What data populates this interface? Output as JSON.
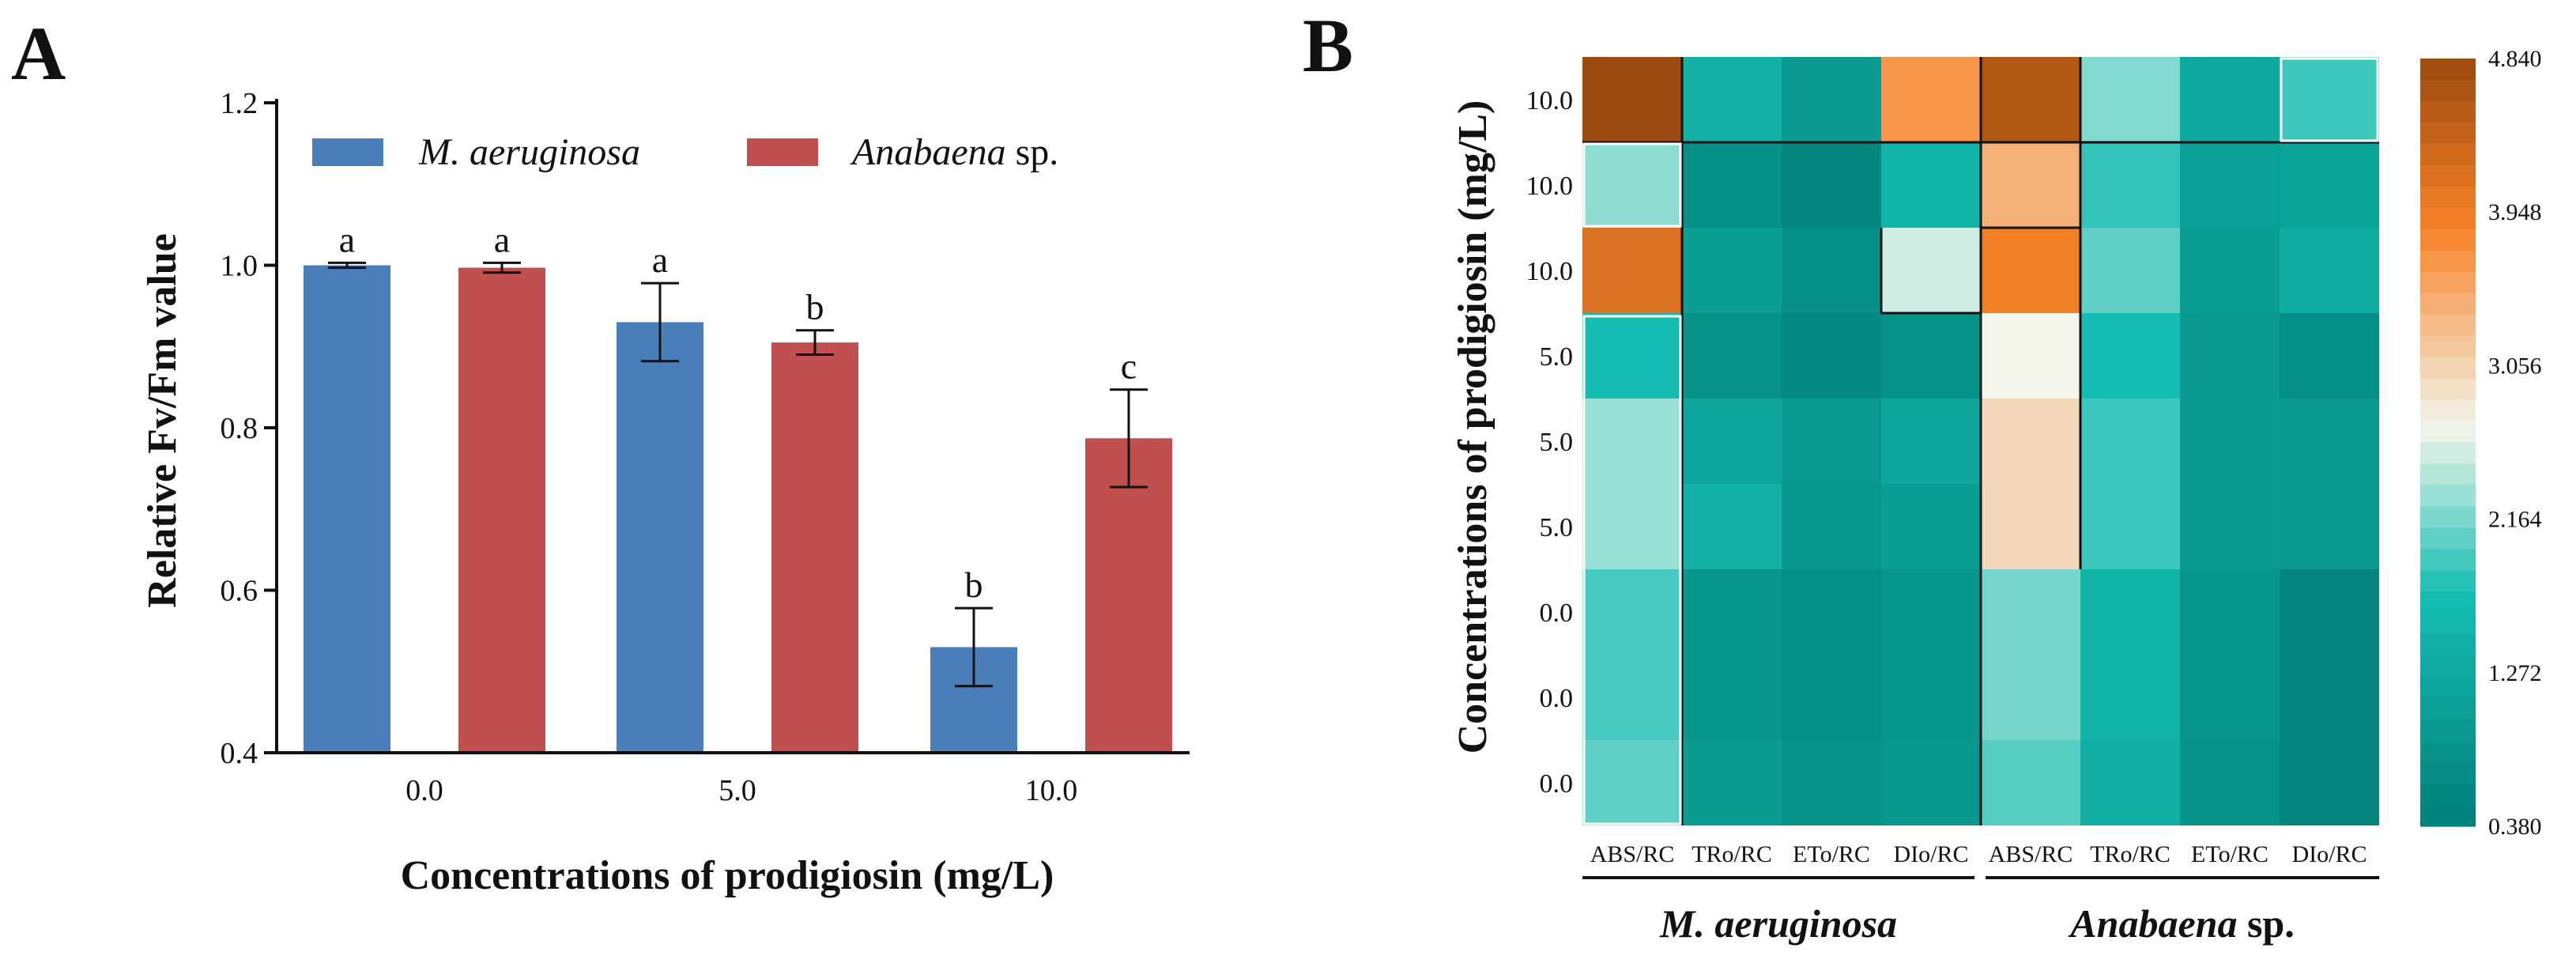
{
  "panel_a": {
    "letter": "A"
  },
  "panel_b": {
    "letter": "B"
  },
  "colors": {
    "m_aeruginosa": "#4a7ebb",
    "anabaena": "#c0504d",
    "heat_low": "#007f78",
    "heat_mid": "#15bdb2",
    "heat_pale": "#f2f6ec",
    "heat_high": "#9c4a0f"
  },
  "chart_data": [
    {
      "type": "bar",
      "title": "",
      "xlabel": "Concentrations of prodigiosin (mg/L)",
      "ylabel": "Relative Fv/Fm value",
      "categories": [
        "0.0",
        "5.0",
        "10.0"
      ],
      "ylim": [
        0.4,
        1.2
      ],
      "yticks": [
        "0.4",
        "0.6",
        "0.8",
        "1.0",
        "1.2"
      ],
      "legend_position": "top-left",
      "series": [
        {
          "name_italic": "M. aeruginosa",
          "name_rest": "",
          "color": "#4a7ebb",
          "values": [
            1.0,
            0.93,
            0.53
          ],
          "errors": [
            0.003,
            0.048,
            0.048
          ],
          "labels": [
            "a",
            "a",
            "b"
          ]
        },
        {
          "name_italic": "Anabaena",
          "name_rest": " sp.",
          "color": "#c0504d",
          "values": [
            0.997,
            0.905,
            0.787
          ],
          "errors": [
            0.006,
            0.015,
            0.06
          ],
          "labels": [
            "a",
            "b",
            "c"
          ]
        }
      ]
    },
    {
      "type": "heatmap",
      "ylabel": "Concentrations of prodigiosin (mg/L)",
      "rows": [
        "10.0",
        "10.0",
        "10.0",
        "5.0",
        "5.0",
        "5.0",
        "0.0",
        "0.0",
        "0.0"
      ],
      "columns": [
        "ABS/RC",
        "TRo/RC",
        "ETo/RC",
        "DIo/RC",
        "ABS/RC",
        "TRo/RC",
        "ETo/RC",
        "DIo/RC"
      ],
      "groups": [
        {
          "italic": "M. aeruginosa",
          "rest": "",
          "columns": [
            0,
            3
          ]
        },
        {
          "italic": "Anabaena",
          "rest": " sp.",
          "columns": [
            4,
            7
          ]
        }
      ],
      "values": [
        [
          4.84,
          1.45,
          1.0,
          3.65,
          4.6,
          2.2,
          1.3,
          1.9
        ],
        [
          2.25,
          0.75,
          0.55,
          1.5,
          3.4,
          1.85,
          1.1,
          1.15
        ],
        [
          4.15,
          1.05,
          0.75,
          2.55,
          3.9,
          2.05,
          1.05,
          1.35
        ],
        [
          1.7,
          0.8,
          0.6,
          0.8,
          2.7,
          1.7,
          0.95,
          0.7
        ],
        [
          2.3,
          1.2,
          0.95,
          1.25,
          3.0,
          1.9,
          1.0,
          0.95
        ],
        [
          2.3,
          1.45,
          0.9,
          1.05,
          3.0,
          1.9,
          1.0,
          0.95
        ],
        [
          1.95,
          0.85,
          0.7,
          0.85,
          2.15,
          1.5,
          0.85,
          0.55
        ],
        [
          1.95,
          0.85,
          0.7,
          0.85,
          2.15,
          1.5,
          0.85,
          0.55
        ],
        [
          2.05,
          1.0,
          0.8,
          0.9,
          2.0,
          1.4,
          0.8,
          0.55
        ]
      ],
      "colorbar": {
        "min": 0.38,
        "max": 4.84,
        "ticks": [
          "0.380",
          "1.272",
          "2.164",
          "3.056",
          "3.948",
          "4.840"
        ]
      }
    }
  ]
}
